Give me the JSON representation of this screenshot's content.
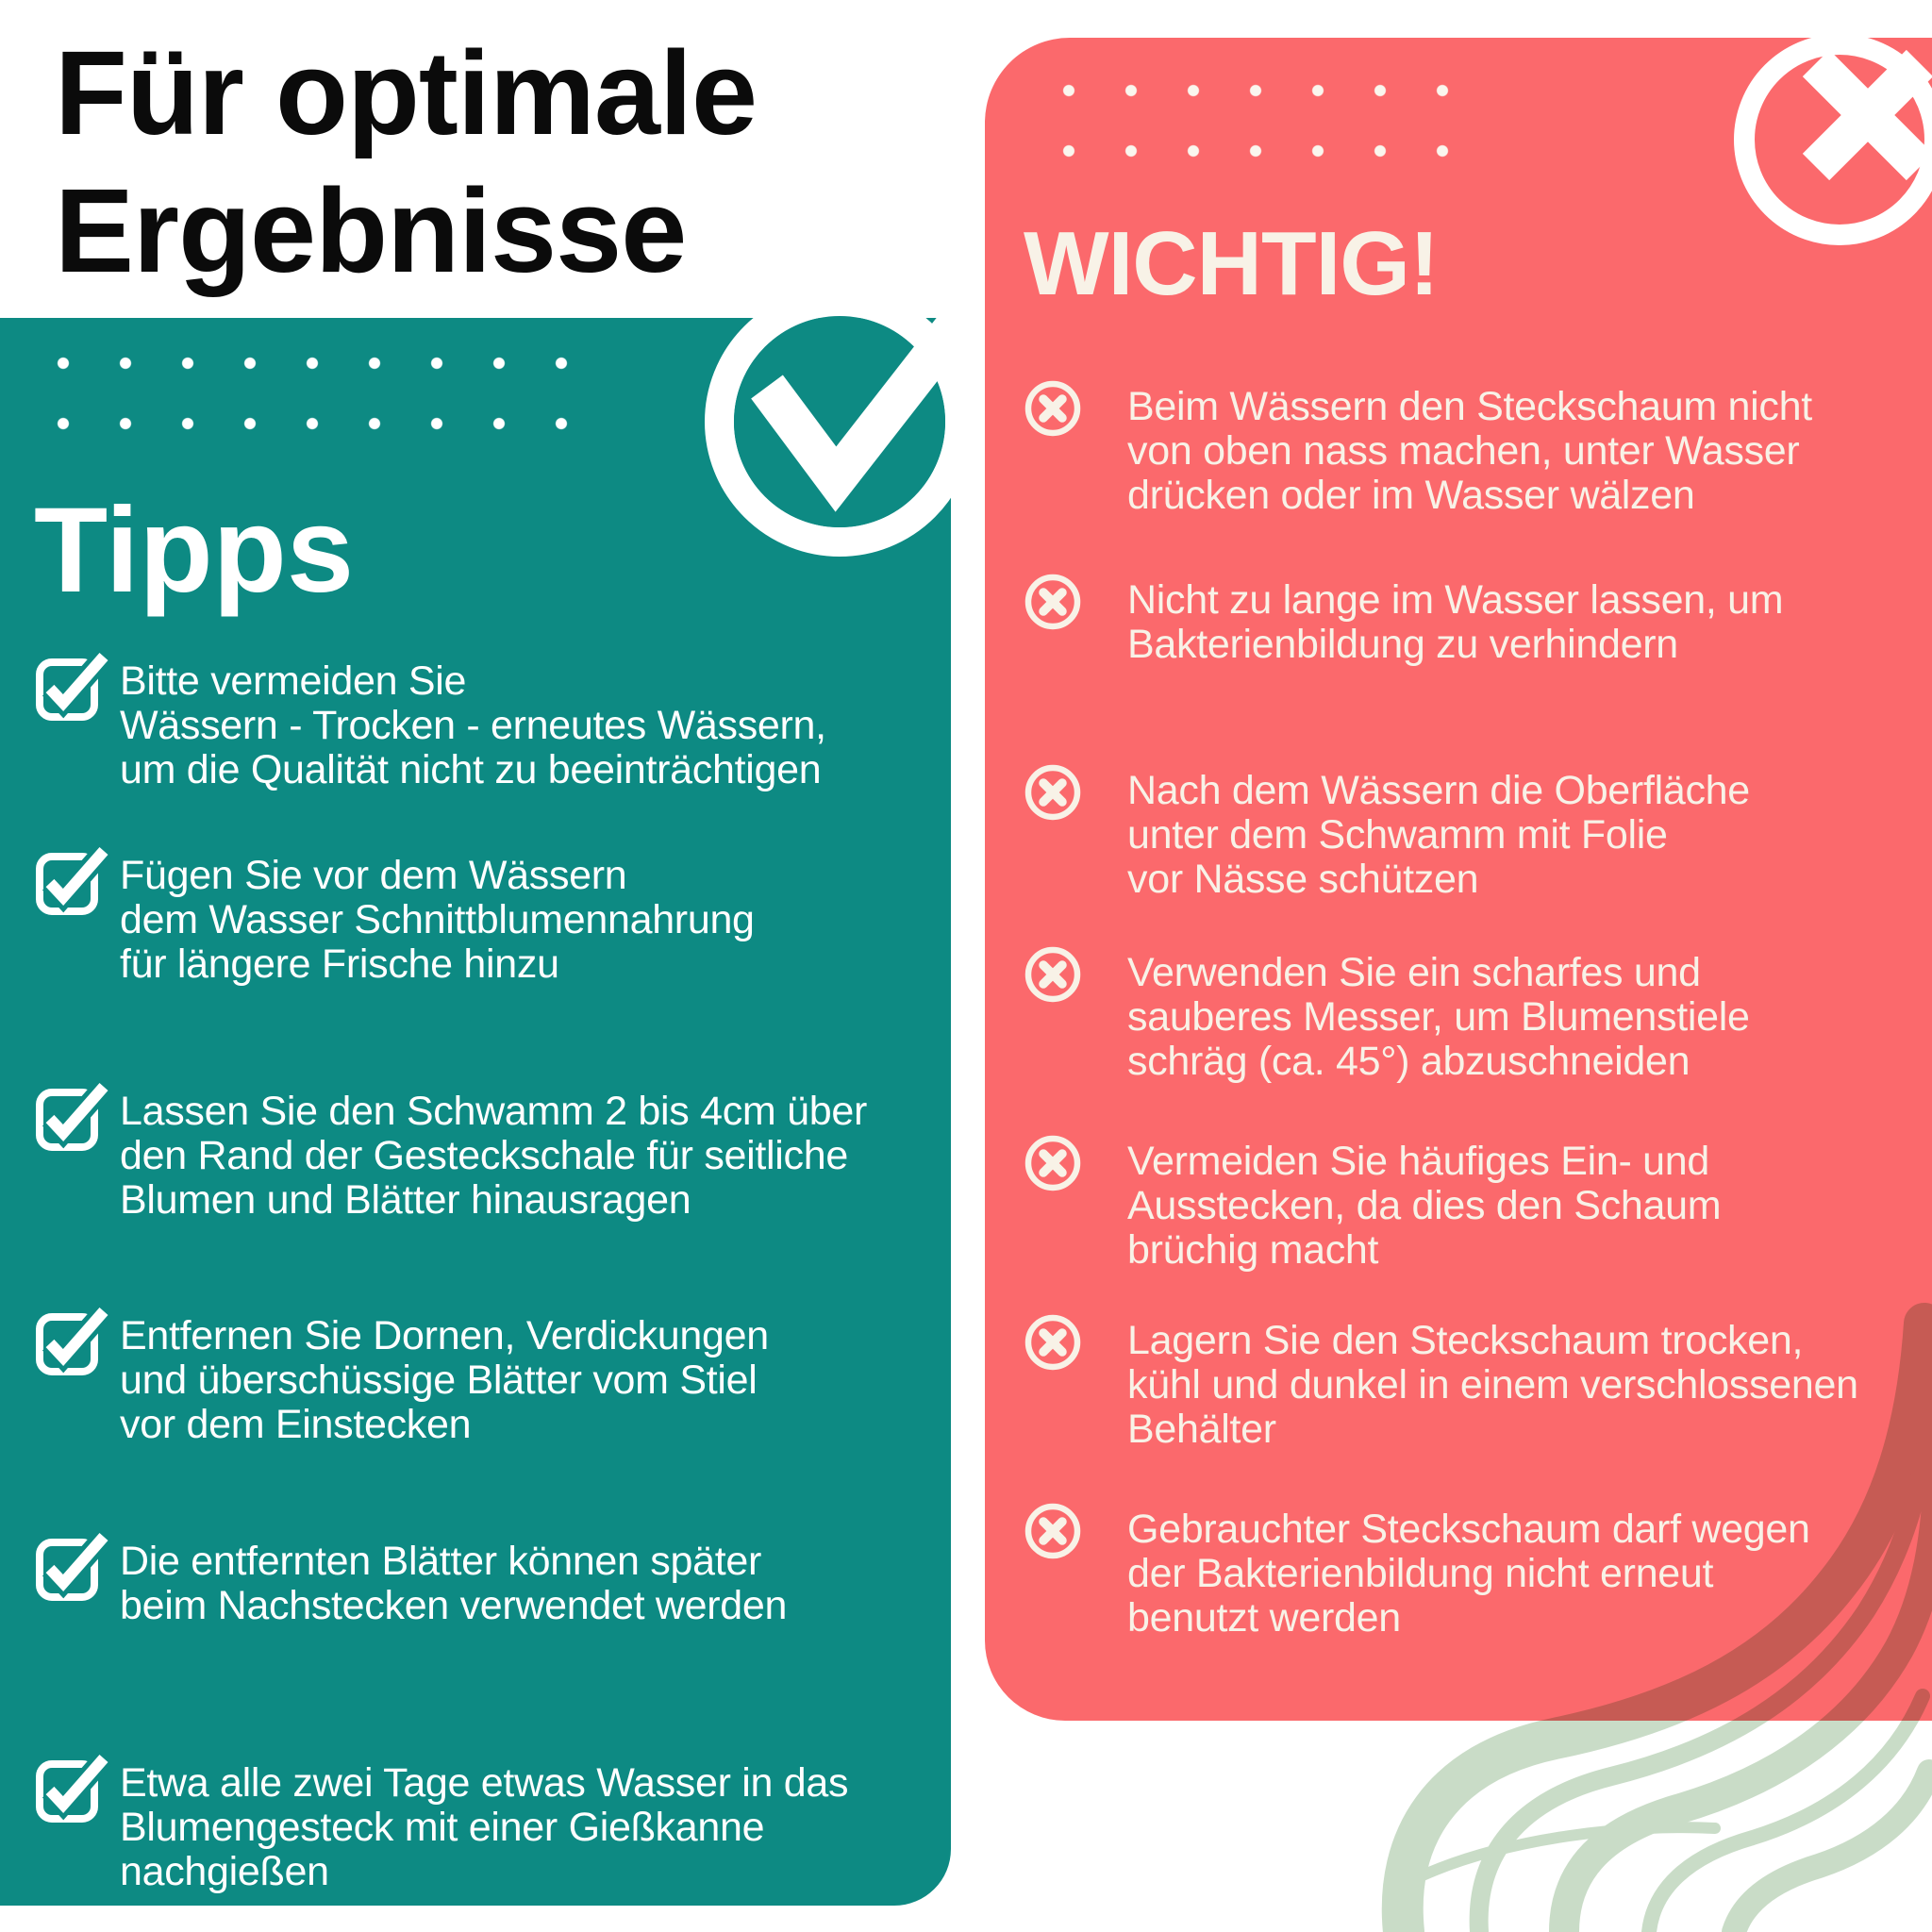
{
  "colors": {
    "page_bg": "#ffffff",
    "teal": "#0d8a83",
    "coral": "#fb696c",
    "cream": "#f8f2e7",
    "ink": "#0b0b0b",
    "sage": "#c9dcc7"
  },
  "title": {
    "lines": [
      "Für optimale",
      "Ergebnisse"
    ]
  },
  "icons": {
    "tips_item_icon": "checkbox-check-icon",
    "tips_badge": "check-circle-badge",
    "important_item_icon": "x-circle-icon",
    "important_badge": "x-circle-badge"
  },
  "tips_panel": {
    "heading": "Tipps",
    "items": [
      [
        "Bitte vermeiden Sie",
        "Wässern - Trocken - erneutes Wässern,",
        "um die Qualität nicht zu beeinträchtigen"
      ],
      [
        "Fügen Sie vor dem Wässern",
        "dem Wasser Schnittblumennahrung",
        "für längere Frische hinzu"
      ],
      [
        "Lassen Sie den Schwamm 2 bis 4cm über",
        "den Rand der Gesteckschale für seitliche",
        "Blumen und Blätter hinausragen"
      ],
      [
        "Entfernen Sie Dornen, Verdickungen",
        "und überschüssige Blätter vom Stiel",
        "vor dem Einstecken"
      ],
      [
        "Die entfernten Blätter können später",
        "beim Nachstecken verwendet werden"
      ],
      [
        "Etwa alle zwei Tage etwas Wasser in das",
        "Blumengesteck mit einer Gießkanne",
        "nachgießen"
      ]
    ]
  },
  "important_panel": {
    "heading": "WICHTIG!",
    "items": [
      [
        "Beim Wässern den Steckschaum nicht",
        "von oben nass machen, unter Wasser",
        "drücken oder im Wasser wälzen"
      ],
      [
        "Nicht zu lange im Wasser lassen, um",
        "Bakterienbildung zu verhindern"
      ],
      [
        "Nach dem Wässern die Oberfläche",
        "unter dem Schwamm mit Folie",
        "vor Nässe schützen"
      ],
      [
        "Verwenden Sie ein scharfes und",
        "sauberes Messer, um Blumenstiele",
        "schräg (ca. 45°) abzuschneiden"
      ],
      [
        "Vermeiden Sie häufiges Ein- und",
        "Ausstecken, da dies den Schaum",
        "brüchig macht"
      ],
      [
        "Lagern Sie den Steckschaum trocken,",
        "kühl und dunkel in einem verschlossenen",
        "Behälter"
      ],
      [
        "Gebrauchter Steckschaum darf wegen",
        "der Bakterienbildung nicht erneut",
        "benutzt werden"
      ]
    ]
  }
}
